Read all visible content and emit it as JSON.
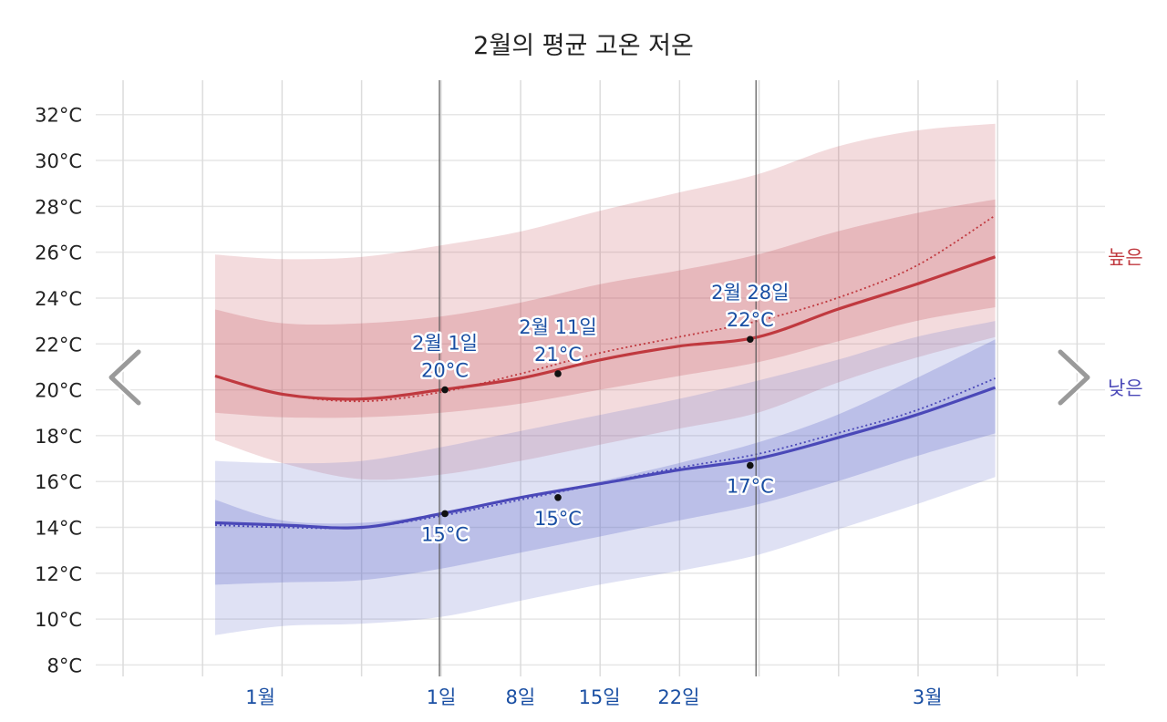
{
  "chart_data": {
    "type": "area",
    "title": "2월의 평균 고온 저온",
    "y_unit": "°C",
    "ylim": [
      7.5,
      33.5
    ],
    "y_ticks": [
      "8°C",
      "10°C",
      "12°C",
      "14°C",
      "16°C",
      "18°C",
      "20°C",
      "22°C",
      "24°C",
      "26°C",
      "28°C",
      "30°C",
      "32°C"
    ],
    "x_domain": [
      "01-16",
      "03-16"
    ],
    "x_ticks": [
      {
        "date": "01-16",
        "label": "1월"
      },
      {
        "date": "02-01",
        "label": "1일"
      },
      {
        "date": "02-08",
        "label": "8일"
      },
      {
        "date": "02-15",
        "label": "15일"
      },
      {
        "date": "02-22",
        "label": "22일"
      },
      {
        "date": "03-16",
        "label": "3월"
      }
    ],
    "month_markers": [
      "02-01",
      "03-01"
    ],
    "x": [
      "01-12",
      "01-18",
      "01-25",
      "02-01",
      "02-08",
      "02-15",
      "02-22",
      "03-01",
      "03-08",
      "03-15",
      "03-22"
    ],
    "series": [
      {
        "name": "높은",
        "color": "#c0393f",
        "mean": [
          20.6,
          19.8,
          19.6,
          20.0,
          20.5,
          21.3,
          21.9,
          22.3,
          23.5,
          24.6,
          25.8
        ],
        "prev_year_dotted": [
          20.6,
          19.8,
          19.5,
          19.9,
          20.7,
          21.6,
          22.3,
          23.0,
          24.0,
          25.4,
          27.6
        ],
        "band_outer": {
          "low": [
            17.8,
            16.8,
            16.1,
            16.3,
            16.9,
            17.6,
            18.3,
            19.0,
            20.3,
            21.4,
            22.3
          ],
          "high": [
            25.9,
            25.7,
            25.8,
            26.3,
            26.9,
            27.8,
            28.6,
            29.4,
            30.6,
            31.3,
            31.6
          ]
        },
        "band_inner": {
          "low": [
            19.0,
            18.8,
            18.8,
            19.0,
            19.4,
            20.0,
            20.6,
            21.2,
            22.1,
            23.0,
            23.6
          ],
          "high": [
            23.5,
            22.9,
            22.9,
            23.2,
            23.8,
            24.6,
            25.2,
            25.9,
            26.9,
            27.7,
            28.3
          ]
        }
      },
      {
        "name": "낮은",
        "color": "#4a48b8",
        "mean": [
          14.2,
          14.1,
          14.0,
          14.6,
          15.3,
          15.9,
          16.5,
          17.0,
          17.9,
          18.9,
          20.1
        ],
        "prev_year_dotted": [
          14.1,
          14.0,
          14.0,
          14.5,
          15.2,
          15.9,
          16.6,
          17.2,
          18.1,
          19.1,
          20.5
        ],
        "band_outer": {
          "low": [
            9.3,
            9.7,
            9.8,
            10.1,
            10.8,
            11.5,
            12.1,
            12.8,
            13.9,
            15.0,
            16.2
          ],
          "high": [
            16.9,
            16.8,
            16.9,
            17.5,
            18.2,
            18.9,
            19.6,
            20.4,
            21.3,
            22.3,
            23.0
          ]
        },
        "band_inner": {
          "low": [
            11.5,
            11.6,
            11.7,
            12.2,
            12.9,
            13.6,
            14.3,
            15.0,
            16.0,
            17.1,
            18.1
          ],
          "high": [
            15.2,
            14.3,
            14.2,
            14.6,
            15.2,
            16.0,
            16.8,
            17.7,
            18.9,
            20.5,
            22.2
          ]
        }
      }
    ],
    "annotations": [
      {
        "date": "02-01",
        "title": "2월 1일",
        "high": "20°C",
        "high_value": 20.0,
        "low": "15°C",
        "low_value": 14.6
      },
      {
        "date": "02-11",
        "title": "2월 11일",
        "high": "21°C",
        "high_value": 20.7,
        "low": "15°C",
        "low_value": 15.3
      },
      {
        "date": "02-28",
        "title": "2월 28일",
        "high": "22°C",
        "high_value": 22.2,
        "low": "17°C",
        "low_value": 16.7
      }
    ],
    "grid": true,
    "nav": {
      "prev_icon": "chevron-left-icon",
      "next_icon": "chevron-right-icon"
    }
  }
}
